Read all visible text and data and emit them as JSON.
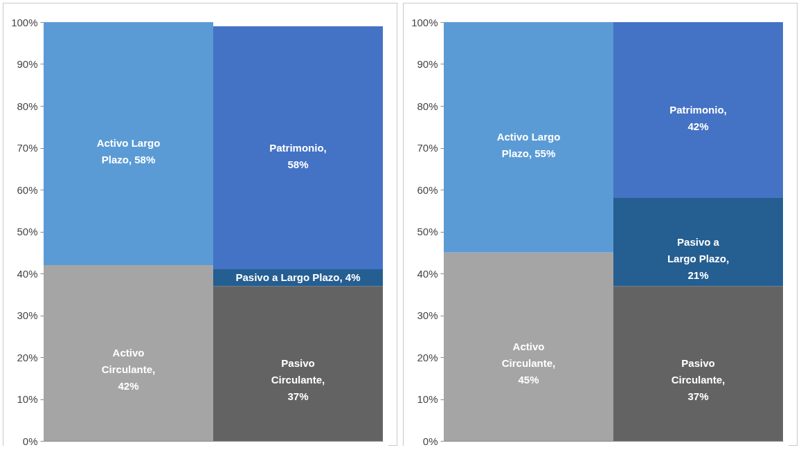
{
  "chart_data": [
    {
      "type": "bar",
      "stacked": true,
      "categories": [
        null,
        null
      ],
      "ylim": [
        0,
        100
      ],
      "yticks": [
        {
          "value": 0,
          "label": "0%"
        },
        {
          "value": 10,
          "label": "10%"
        },
        {
          "value": 20,
          "label": "20%"
        },
        {
          "value": 30,
          "label": "30%"
        },
        {
          "value": 40,
          "label": "40%"
        },
        {
          "value": 50,
          "label": "50%"
        },
        {
          "value": 60,
          "label": "60%"
        },
        {
          "value": 70,
          "label": "70%"
        },
        {
          "value": 80,
          "label": "80%"
        },
        {
          "value": 90,
          "label": "90%"
        },
        {
          "value": 100,
          "label": "100%"
        }
      ],
      "series": [
        {
          "color": "#a5a5a5",
          "values": [
            42,
            null
          ],
          "value_labels": [
            "Activo Circulante, 42%",
            null
          ]
        },
        {
          "color": "#5b9bd5",
          "values": [
            58,
            null
          ],
          "value_labels": [
            "Activo Largo Plazo, 58%",
            null
          ]
        },
        {
          "color": "#636363",
          "values": [
            null,
            37
          ],
          "value_labels": [
            null,
            "Pasivo Circulante, 37%"
          ]
        },
        {
          "color": "#255e91",
          "values": [
            null,
            4
          ],
          "value_labels": [
            null,
            "Pasivo a Largo Plazo, 4%"
          ]
        },
        {
          "color": "#4472c4",
          "values": [
            null,
            58
          ],
          "value_labels": [
            null,
            "Patrimonio, 58%"
          ]
        }
      ]
    },
    {
      "type": "bar",
      "stacked": true,
      "categories": [
        null,
        null
      ],
      "ylim": [
        0,
        100
      ],
      "yticks": [
        {
          "value": 0,
          "label": "0%"
        },
        {
          "value": 10,
          "label": "10%"
        },
        {
          "value": 20,
          "label": "20%"
        },
        {
          "value": 30,
          "label": "30%"
        },
        {
          "value": 40,
          "label": "40%"
        },
        {
          "value": 50,
          "label": "50%"
        },
        {
          "value": 60,
          "label": "60%"
        },
        {
          "value": 70,
          "label": "70%"
        },
        {
          "value": 80,
          "label": "80%"
        },
        {
          "value": 90,
          "label": "90%"
        },
        {
          "value": 100,
          "label": "100%"
        }
      ],
      "series": [
        {
          "color": "#a5a5a5",
          "values": [
            45,
            null
          ],
          "value_labels": [
            "Activo Circulante, 45%",
            null
          ]
        },
        {
          "color": "#5b9bd5",
          "values": [
            55,
            null
          ],
          "value_labels": [
            "Activo Largo Plazo, 55%",
            null
          ]
        },
        {
          "color": "#636363",
          "values": [
            null,
            37
          ],
          "value_labels": [
            null,
            "Pasivo Circulante, 37%"
          ]
        },
        {
          "color": "#255e91",
          "values": [
            null,
            21
          ],
          "value_labels": [
            null,
            "Pasivo a Largo Plazo, 21%"
          ]
        },
        {
          "color": "#4472c4",
          "values": [
            null,
            42
          ],
          "value_labels": [
            null,
            "Patrimonio, 42%"
          ]
        }
      ]
    }
  ]
}
